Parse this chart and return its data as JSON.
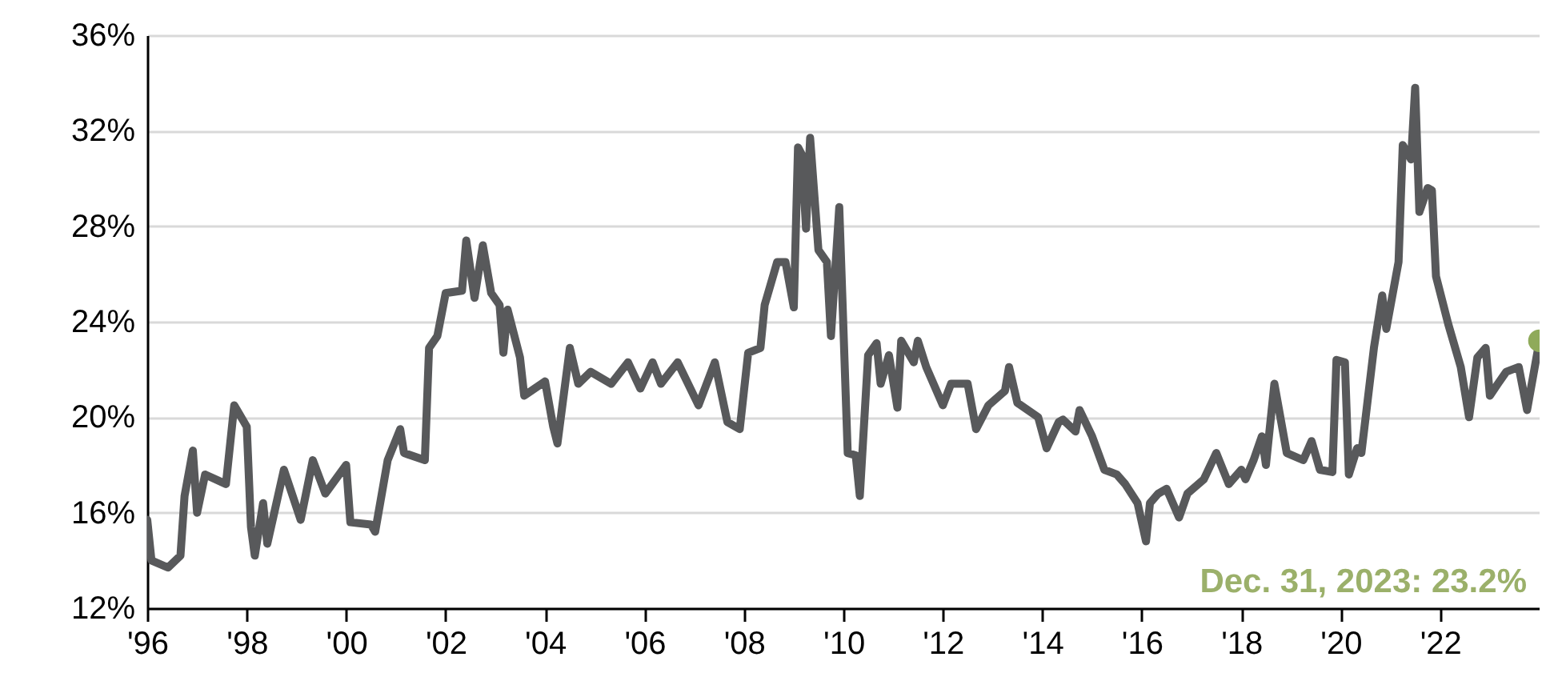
{
  "chart_data": {
    "type": "line",
    "color": "#58595b",
    "x": [
      "1996-01",
      "1996-02",
      "1996-06",
      "1996-09",
      "1996-10",
      "1996-12",
      "1997-01",
      "1997-03",
      "1997-08",
      "1997-10",
      "1998-01",
      "1998-02",
      "1998-03",
      "1998-05",
      "1998-06",
      "1998-10",
      "1999-02",
      "1999-05",
      "1999-08",
      "2000-01",
      "2000-02",
      "2000-07",
      "2000-08",
      "2000-11",
      "2001-02",
      "2001-03",
      "2001-08",
      "2001-09",
      "2001-11",
      "2002-01",
      "2002-05",
      "2002-06",
      "2002-08",
      "2002-10",
      "2002-12",
      "2003-02",
      "2003-03",
      "2003-04",
      "2003-07",
      "2003-08",
      "2004-01",
      "2004-03",
      "2004-04",
      "2004-07",
      "2004-09",
      "2004-12",
      "2005-05",
      "2005-09",
      "2005-12",
      "2006-03",
      "2006-05",
      "2006-09",
      "2007-02",
      "2007-06",
      "2007-09",
      "2007-12",
      "2008-02",
      "2008-05",
      "2008-06",
      "2008-09",
      "2008-11",
      "2009-01",
      "2009-02",
      "2009-03",
      "2009-04",
      "2009-05",
      "2009-07",
      "2009-09",
      "2009-10",
      "2009-12",
      "2010-02",
      "2010-04",
      "2010-05",
      "2010-07",
      "2010-09",
      "2010-10",
      "2010-12",
      "2011-02",
      "2011-03",
      "2011-06",
      "2011-07",
      "2011-09",
      "2012-01",
      "2012-03",
      "2012-07",
      "2012-09",
      "2012-12",
      "2013-04",
      "2013-05",
      "2013-07",
      "2013-12",
      "2014-02",
      "2014-05",
      "2014-06",
      "2014-09",
      "2014-10",
      "2015-01",
      "2015-04",
      "2015-07",
      "2015-09",
      "2015-12",
      "2016-02",
      "2016-03",
      "2016-05",
      "2016-07",
      "2016-10",
      "2016-12",
      "2017-04",
      "2017-07",
      "2017-10",
      "2018-01",
      "2018-02",
      "2018-04",
      "2018-06",
      "2018-07",
      "2018-09",
      "2018-12",
      "2019-04",
      "2019-06",
      "2019-08",
      "2019-11",
      "2019-12",
      "2020-02",
      "2020-03",
      "2020-05",
      "2020-06",
      "2020-09",
      "2020-11",
      "2020-12",
      "2021-03",
      "2021-04",
      "2021-06",
      "2021-07",
      "2021-08",
      "2021-10",
      "2021-11",
      "2021-12",
      "2022-03",
      "2022-06",
      "2022-08",
      "2022-10",
      "2022-12",
      "2023-01",
      "2023-03",
      "2023-05",
      "2023-08",
      "2023-10",
      "2023-12-31"
    ],
    "values": [
      15.7,
      14.0,
      13.7,
      14.2,
      16.7,
      18.6,
      16.0,
      17.6,
      17.2,
      20.5,
      19.6,
      15.4,
      14.2,
      16.4,
      14.7,
      17.8,
      15.7,
      18.2,
      16.8,
      18.0,
      15.6,
      15.5,
      15.2,
      18.2,
      19.5,
      18.5,
      18.2,
      22.9,
      23.4,
      25.2,
      25.3,
      27.4,
      25.0,
      27.2,
      25.2,
      24.7,
      22.7,
      24.5,
      22.5,
      20.9,
      21.5,
      19.6,
      18.9,
      22.9,
      21.4,
      21.9,
      21.4,
      22.3,
      21.2,
      22.3,
      21.4,
      22.3,
      20.5,
      22.3,
      19.8,
      19.5,
      22.7,
      22.9,
      24.7,
      26.5,
      26.5,
      24.6,
      31.3,
      31.0,
      27.9,
      31.7,
      27.0,
      26.5,
      23.4,
      28.8,
      18.5,
      18.4,
      16.7,
      22.6,
      23.1,
      21.4,
      22.6,
      20.4,
      23.2,
      22.3,
      23.2,
      22.1,
      20.5,
      21.4,
      21.4,
      19.5,
      20.5,
      21.1,
      22.1,
      20.6,
      20.0,
      18.7,
      19.8,
      19.9,
      19.4,
      20.3,
      19.2,
      17.8,
      17.6,
      17.2,
      16.4,
      14.8,
      16.4,
      16.8,
      17.0,
      15.8,
      16.8,
      17.4,
      18.5,
      17.2,
      17.8,
      17.4,
      18.2,
      19.2,
      18.0,
      21.4,
      18.5,
      18.2,
      19.0,
      17.8,
      17.7,
      22.4,
      22.3,
      17.6,
      18.7,
      18.5,
      22.9,
      25.1,
      23.7,
      26.5,
      31.4,
      30.8,
      33.8,
      28.6,
      29.6,
      29.5,
      25.9,
      23.9,
      22.1,
      20.0,
      22.5,
      22.9,
      20.9,
      21.4,
      21.9,
      22.1,
      20.3,
      23.2
    ],
    "xlim": [
      "1996-01-01",
      "2024-01-01"
    ],
    "xticks": [
      {
        "value": "1996-01-01",
        "label": "'96"
      },
      {
        "value": "1998-01-01",
        "label": "'98"
      },
      {
        "value": "2000-01-01",
        "label": "'00"
      },
      {
        "value": "2002-01-01",
        "label": "'02"
      },
      {
        "value": "2004-01-01",
        "label": "'04"
      },
      {
        "value": "2006-01-01",
        "label": "'06"
      },
      {
        "value": "2008-01-01",
        "label": "'08"
      },
      {
        "value": "2010-01-01",
        "label": "'10"
      },
      {
        "value": "2012-01-01",
        "label": "'12"
      },
      {
        "value": "2014-01-01",
        "label": "'14"
      },
      {
        "value": "2016-01-01",
        "label": "'16"
      },
      {
        "value": "2018-01-01",
        "label": "'18"
      },
      {
        "value": "2020-01-01",
        "label": "'20"
      },
      {
        "value": "2022-01-01",
        "label": "'22"
      }
    ],
    "ylim": [
      12,
      36
    ],
    "yticks": [
      {
        "value": 12,
        "label": "12%"
      },
      {
        "value": 16,
        "label": "16%"
      },
      {
        "value": 20,
        "label": "20%"
      },
      {
        "value": 24,
        "label": "24%"
      },
      {
        "value": 28,
        "label": "28%"
      },
      {
        "value": 32,
        "label": "32%"
      },
      {
        "value": 36,
        "label": "36%"
      }
    ],
    "grid": "y",
    "annotations": [
      "Dec. 31, 2023: 23.2%"
    ]
  }
}
